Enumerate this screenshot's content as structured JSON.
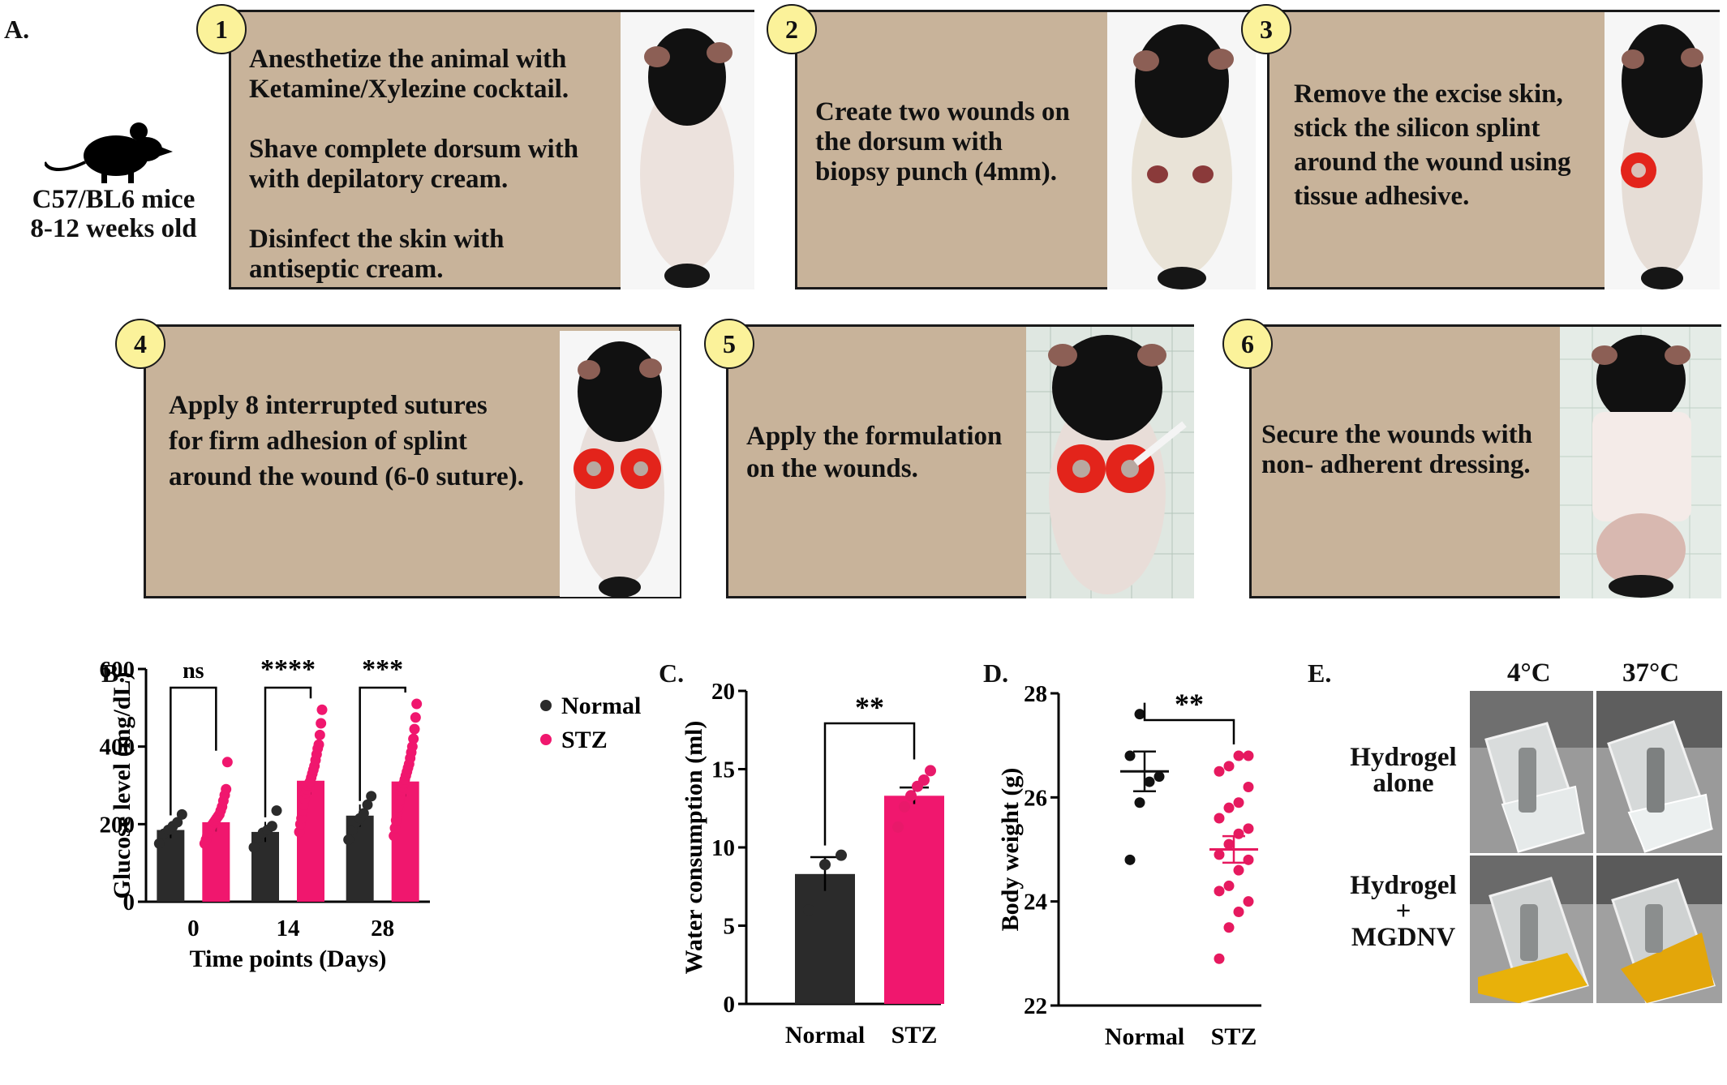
{
  "panel_labels": {
    "a": "A.",
    "b": "B.",
    "c": "C.",
    "d": "D.",
    "e": "E."
  },
  "mouse": {
    "line1": "C57/BL6 mice",
    "line2": "8-12 weeks old",
    "icon": "mouse-icon"
  },
  "steps": [
    {
      "num": "1",
      "lines": [
        "Anesthetize the animal with",
        "Ketamine/Xylezine cocktail.",
        "",
        "Shave complete dorsum with",
        "with depilatory cream.",
        "",
        "Disinfect the skin with",
        "antiseptic cream."
      ]
    },
    {
      "num": "2",
      "lines": [
        "Create two wounds on",
        "the dorsum with",
        "biopsy punch (4mm)."
      ]
    },
    {
      "num": "3",
      "lines": [
        "Remove the excise skin,",
        "stick the silicon splint",
        "around the wound using",
        "tissue adhesive."
      ]
    },
    {
      "num": "4",
      "lines": [
        "Apply 8 interrupted sutures",
        "for firm adhesion of splint",
        " around the wound (6-0 suture)."
      ]
    },
    {
      "num": "5",
      "lines": [
        "Apply the formulation",
        " on the wounds."
      ]
    },
    {
      "num": "6",
      "lines": [
        "Secure the wounds with",
        "non- adherent dressing."
      ]
    }
  ],
  "chart_data": [
    {
      "id": "B",
      "type": "bar",
      "ylabel": "Glucose level (mg/dL)",
      "xlabel": "Time points (Days)",
      "categories": [
        "0",
        "14",
        "28"
      ],
      "ylim": [
        0,
        600
      ],
      "yticks": [
        "0",
        "200",
        "400",
        "600"
      ],
      "series": [
        {
          "name": "Normal",
          "color": "#2b2b2b",
          "values": [
            185,
            180,
            222
          ],
          "points": [
            [
              150,
              175,
              185,
              195,
              205,
              225
            ],
            [
              140,
              165,
              178,
              185,
              195,
              235
            ],
            [
              160,
              185,
              205,
              215,
              228,
              250,
              272
            ]
          ]
        },
        {
          "name": "STZ",
          "color": "#f0176e",
          "values": [
            205,
            312,
            310
          ],
          "points": [
            [
              150,
              160,
              170,
              180,
              190,
              195,
              200,
              205,
              210,
              215,
              220,
              225,
              235,
              245,
              260,
              275,
              290,
              360
            ],
            [
              180,
              200,
              215,
              235,
              250,
              265,
              280,
              290,
              300,
              305,
              310,
              320,
              330,
              340,
              350,
              365,
              380,
              395,
              405,
              430,
              460,
              495
            ],
            [
              170,
              190,
              210,
              230,
              245,
              260,
              275,
              285,
              295,
              305,
              315,
              325,
              335,
              345,
              355,
              370,
              385,
              400,
              420,
              445,
              475,
              510
            ]
          ]
        }
      ],
      "significance": [
        "ns",
        "****",
        "***"
      ],
      "legend": "right"
    },
    {
      "id": "C",
      "type": "bar",
      "ylabel": "Water consumption (ml)",
      "categories": [
        "Normal",
        "STZ"
      ],
      "ylim": [
        0,
        20
      ],
      "yticks": [
        "0",
        "5",
        "10",
        "15",
        "20"
      ],
      "values": [
        8.3,
        13.3
      ],
      "colors": [
        "#2b2b2b",
        "#f0176e"
      ],
      "points": [
        [
          6.0,
          8.9,
          9.5
        ],
        [
          11.3,
          12.6,
          13.3,
          13.9,
          14.3,
          14.9
        ]
      ],
      "significance": "**"
    },
    {
      "id": "D",
      "type": "scatter",
      "ylabel": "Body weight (g)",
      "categories": [
        "Normal",
        "STZ"
      ],
      "ylim": [
        22,
        28
      ],
      "yticks": [
        "22",
        "24",
        "26",
        "28"
      ],
      "means": [
        26.5,
        25.0
      ],
      "colors": [
        "#111111",
        "#e6195f"
      ],
      "points": [
        [
          24.8,
          25.9,
          26.3,
          26.4,
          26.8,
          27.6
        ],
        [
          22.9,
          23.5,
          23.8,
          24.0,
          24.2,
          24.3,
          24.6,
          24.8,
          24.9,
          25.1,
          25.3,
          25.4,
          25.6,
          25.8,
          25.9,
          26.2,
          26.5,
          26.6,
          26.8,
          26.8
        ]
      ],
      "significance": "**"
    }
  ],
  "panel_e": {
    "temps": [
      "4°C",
      "37°C"
    ],
    "rows": [
      {
        "lines": [
          "Hydrogel",
          "alone"
        ]
      },
      {
        "lines": [
          "Hydrogel",
          "+",
          "MGDNV"
        ]
      }
    ]
  }
}
